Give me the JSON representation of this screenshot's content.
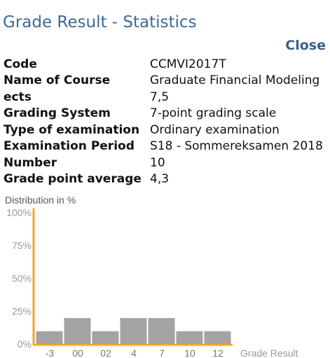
{
  "header": {
    "title": "Grade Result - Statistics",
    "close_label": "Close"
  },
  "info": [
    {
      "label": "Code",
      "value": "CCMVI2017T"
    },
    {
      "label": "Name of Course",
      "value": "Graduate Financial Modeling"
    },
    {
      "label": "ects",
      "value": "7,5"
    },
    {
      "label": "Grading System",
      "value": "7-point grading scale"
    },
    {
      "label": "Type of examination",
      "value": "Ordinary examination"
    },
    {
      "label": "Examination Period",
      "value": "S18 - Sommereksamen 2018"
    },
    {
      "label": "Number",
      "value": "10"
    },
    {
      "label": "Grade point average",
      "value": "4,3"
    }
  ],
  "chart_data": {
    "type": "bar",
    "title": "",
    "ylabel": "Distribution in %",
    "xlabel": "Grade Result",
    "categories": [
      "-3",
      "00",
      "02",
      "4",
      "7",
      "10",
      "12"
    ],
    "values": [
      10,
      20,
      10,
      20,
      20,
      10,
      10
    ],
    "ylim": [
      0,
      100
    ],
    "yticks": [
      "0%",
      "25%",
      "50%",
      "75%",
      "100%"
    ],
    "bar_color": "#a3a3a3",
    "axis_color": "#f0a52a",
    "grid": false
  }
}
